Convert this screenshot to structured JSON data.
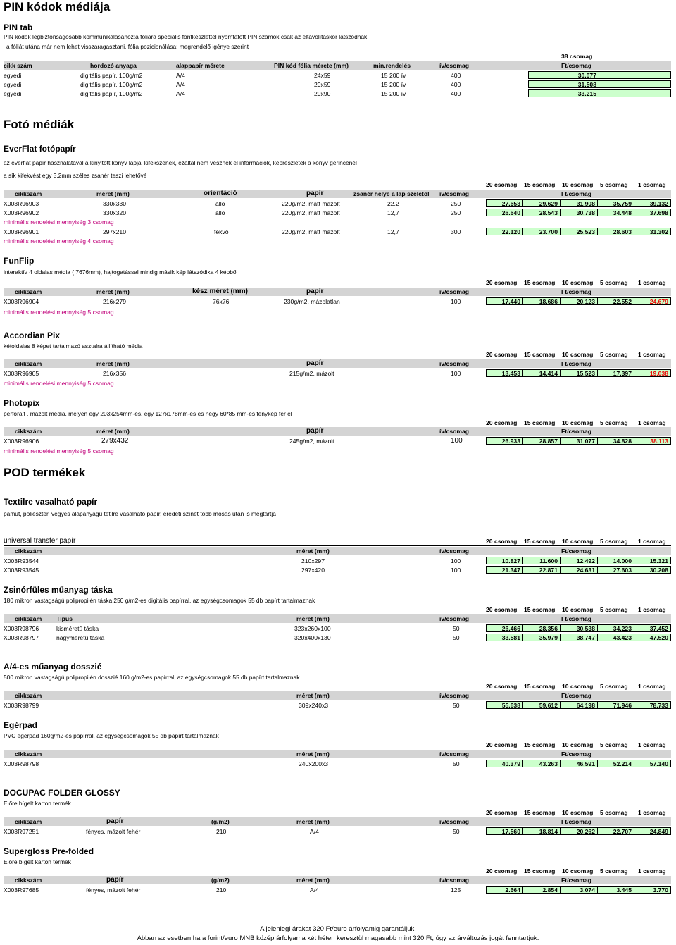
{
  "title": "PIN kódok médiája",
  "pin": {
    "heading": "PIN tab",
    "desc1": "PIN kódok legbiztonságosabb kommunikálásához:a fóliára speciális fontkészlettel nyomtatott PIN számok csak az eltávolításkor látszódnak,",
    "desc2": "a fóliát utána már nem lehet visszaragasztani, fólia pozicionálása: megrendelő igénye szerint",
    "tier": "38 csomag",
    "headers": [
      "cikk szám",
      "hordozó anyaga",
      "alappapír mérete",
      "PIN kód fólia mérete (mm)",
      "min.rendelés",
      "ív/csomag",
      "Ft/csomag"
    ],
    "rows": [
      {
        "code": "egyedi",
        "material": "digitális papír, 100g/m2",
        "size": "A/4",
        "film": "24x59",
        "min": "15 200 ív",
        "sheets": "400",
        "price": "30.077"
      },
      {
        "code": "egyedi",
        "material": "digitális papír, 100g/m2",
        "size": "A/4",
        "film": "29x59",
        "min": "15 200 ív",
        "sheets": "400",
        "price": "31.508"
      },
      {
        "code": "egyedi",
        "material": "digitális papír, 100g/m2",
        "size": "A/4",
        "film": "29x90",
        "min": "15 200 ív",
        "sheets": "400",
        "price": "33.215"
      }
    ]
  },
  "tiers": [
    "20 csomag",
    "15 csomag",
    "10 csomag",
    "5 csomag",
    "1 csomag"
  ],
  "foto": {
    "title": "Fotó médiák",
    "everflat": {
      "heading": "EverFlat fotópapír",
      "desc1": "az everflat papír használatával a kinyitott könyv lapjai kifekszenek, ezáltal nem vesznek el információk, képrészletek a könyv gerincénél",
      "desc2": "a sík kifekvést egy 3,2mm széles zsanér teszi lehetővé",
      "headers": [
        "cikkszám",
        "méret (mm)",
        "orientáció",
        "papír",
        "zsanér helye a lap szélétől",
        "ív/csomag",
        "Ft/csomag"
      ],
      "rows": [
        {
          "code": "X003R96903",
          "size": "330x330",
          "orient": "álló",
          "paper": "220g/m2, matt mázolt",
          "hinge": "22,2",
          "sheets": "250",
          "prices": [
            "27.653",
            "29.629",
            "31.908",
            "35.759",
            "39.132"
          ]
        },
        {
          "code": "X003R96902",
          "size": "330x320",
          "orient": "álló",
          "paper": "220g/m2, matt mázolt",
          "hinge": "12,7",
          "sheets": "250",
          "prices": [
            "26.640",
            "28.543",
            "30.738",
            "34.448",
            "37.698"
          ]
        },
        {
          "code": "X003R96901",
          "size": "297x210",
          "orient": "fekvő",
          "paper": "220g/m2, matt mázolt",
          "hinge": "12,7",
          "sheets": "300",
          "prices": [
            "22.120",
            "23.700",
            "25.523",
            "28.603",
            "31.302"
          ]
        }
      ],
      "note1": "minimális rendelési mennyiség 3 csomag",
      "note2": "minimális rendelési mennyiség 4 csomag"
    },
    "funflip": {
      "heading": "FunFlip",
      "desc": "interaktív 4 oldalas média ( 7676mm), hajtogatással mindig másik kép látszódika 4 képből",
      "headers": [
        "cikkszám",
        "méret (mm)",
        "kész méret (mm)",
        "papír",
        "ív/csomag",
        "Ft/csomag"
      ],
      "row": {
        "code": "X003R96904",
        "size": "216x279",
        "final": "76x76",
        "paper": "230g/m2, mázolatlan",
        "sheets": "100",
        "prices": [
          "17.440",
          "18.686",
          "20.123",
          "22.552",
          "24.679"
        ]
      },
      "note": "minimális rendelési mennyiség 5 csomag"
    },
    "accordian": {
      "heading": "Accordian Pix",
      "desc": "kétoldalas 8 képet tartalmazó asztalra állítható média",
      "headers": [
        "cikkszám",
        "méret (mm)",
        "papír",
        "ív/csomag",
        "Ft/csomag"
      ],
      "row": {
        "code": "X003R96905",
        "size": "216x356",
        "paper": "215g/m2, mázolt",
        "sheets": "100",
        "prices": [
          "13.453",
          "14.414",
          "15.523",
          "17.397",
          "19.038"
        ]
      },
      "note": "minimális rendelési mennyiség 5 csomag"
    },
    "photopix": {
      "heading": "Photopix",
      "desc": "perforált , mázolt média, melyen egy 203x254mm-es, egy 127x178mm-es és négy 60*85 mm-es fénykép fér el",
      "headers": [
        "cikkszám",
        "méret (mm)",
        "papír",
        "ív/csomag",
        "Ft/csomag"
      ],
      "row": {
        "code": "X003R96906",
        "size": "279x432",
        "paper": "245g/m2, mázolt",
        "sheets": "100",
        "prices": [
          "26.933",
          "28.857",
          "31.077",
          "34.828",
          "38.113"
        ]
      },
      "note": "minimális rendelési mennyiség 5 csomag"
    }
  },
  "pod": {
    "title": "POD termékek",
    "textile": {
      "heading": "Textilre vasalható papír",
      "desc": "pamut, poliészter, vegyes alapanyagú tetilre vasalható papír, eredeti színét több mosás után is megtartja",
      "subheading": "universal transfer papír",
      "headers": [
        "cikkszám",
        "méret (mm)",
        "ív/csomag",
        "Ft/csomag"
      ],
      "rows": [
        {
          "code": "X003R93544",
          "size": "210x297",
          "sheets": "100",
          "prices": [
            "10.827",
            "11.600",
            "12.492",
            "14.000",
            "15.321"
          ]
        },
        {
          "code": "X003R93545",
          "size": "297x420",
          "sheets": "100",
          "prices": [
            "21.347",
            "22.871",
            "24.631",
            "27.603",
            "30.208"
          ]
        }
      ]
    },
    "bag": {
      "heading": "Zsinórfüles műanyag táska",
      "desc": "180 mikron vastagságú polipropilén táska 250 g/m2-es digitális papírral, az egységcsomagok 55 db papírt  tartalmaznak",
      "headers": [
        "cikkszám",
        "Típus",
        "méret (mm)",
        "ív/csomag",
        "Ft/csomag"
      ],
      "rows": [
        {
          "code": "X003R98796",
          "type": "kisméretű táska",
          "size": "323x260x100",
          "sheets": "50",
          "prices": [
            "26.466",
            "28.356",
            "30.538",
            "34.223",
            "37.452"
          ]
        },
        {
          "code": "X003R98797",
          "type": "nagyméretű táska",
          "size": "320x400x130",
          "sheets": "50",
          "prices": [
            "33.581",
            "35.979",
            "38.747",
            "43.423",
            "47.520"
          ]
        }
      ]
    },
    "folder": {
      "heading": "A/4-es műanyag dosszié",
      "desc": "500 mikron vastagságú polipropilén dosszié 160 g/m2-es papírral, az egységcsomagok 55 db papírt  tartalmaznak",
      "headers": [
        "cikkszám",
        "méret (mm)",
        "ív/csomag",
        "Ft/csomag"
      ],
      "row": {
        "code": "X003R98799",
        "size": "309x240x3",
        "sheets": "50",
        "prices": [
          "55.638",
          "59.612",
          "64.198",
          "71.946",
          "78.733"
        ]
      }
    },
    "mousepad": {
      "heading": "Egérpad",
      "desc": "PVC egérpad 160g/m2-es papírral, az egységcsomagok 55 db papírt  tartalmaznak",
      "headers": [
        "cikkszám",
        "méret (mm)",
        "ív/csomag",
        "Ft/csomag"
      ],
      "row": {
        "code": "X003R98798",
        "size": "240x200x3",
        "sheets": "50",
        "prices": [
          "40.379",
          "43.263",
          "46.591",
          "52.214",
          "57.140"
        ]
      }
    },
    "docupac": {
      "heading": "DOCUPAC FOLDER GLOSSY",
      "desc": "Előre bígelt karton termék",
      "headers": [
        "cikkszám",
        "papír",
        "(g/m2)",
        "méret (mm)",
        "ív/csomag",
        "Ft/csomag"
      ],
      "row": {
        "code": "X003R97251",
        "paper": "fényes, mázolt fehér",
        "gsm": "210",
        "size": "A/4",
        "sheets": "50",
        "prices": [
          "17.560",
          "18.814",
          "20.262",
          "22.707",
          "24.849"
        ]
      }
    },
    "supergloss": {
      "heading": "Supergloss Pre-folded",
      "desc": "Előre bígelt karton termék",
      "headers": [
        "cikkszám",
        "papír",
        "(g/m2)",
        "méret (mm)",
        "ív/csomag",
        "Ft/csomag"
      ],
      "row": {
        "code": "X003R97685",
        "paper": "fényes, mázolt fehér",
        "gsm": "210",
        "size": "A/4",
        "sheets": "125",
        "prices": [
          "2.664",
          "2.854",
          "3.074",
          "3.445",
          "3.770"
        ]
      }
    }
  },
  "footer": {
    "line1": "A jelenlegi árakat 320 Ft/euro árfolyamig garantáljuk.",
    "line2": "Abban az esetben ha a forint/euro MNB közép árfolyama két héten keresztül magasabb mint 320 Ft, úgy az árváltozás jogát fenntartjuk."
  }
}
